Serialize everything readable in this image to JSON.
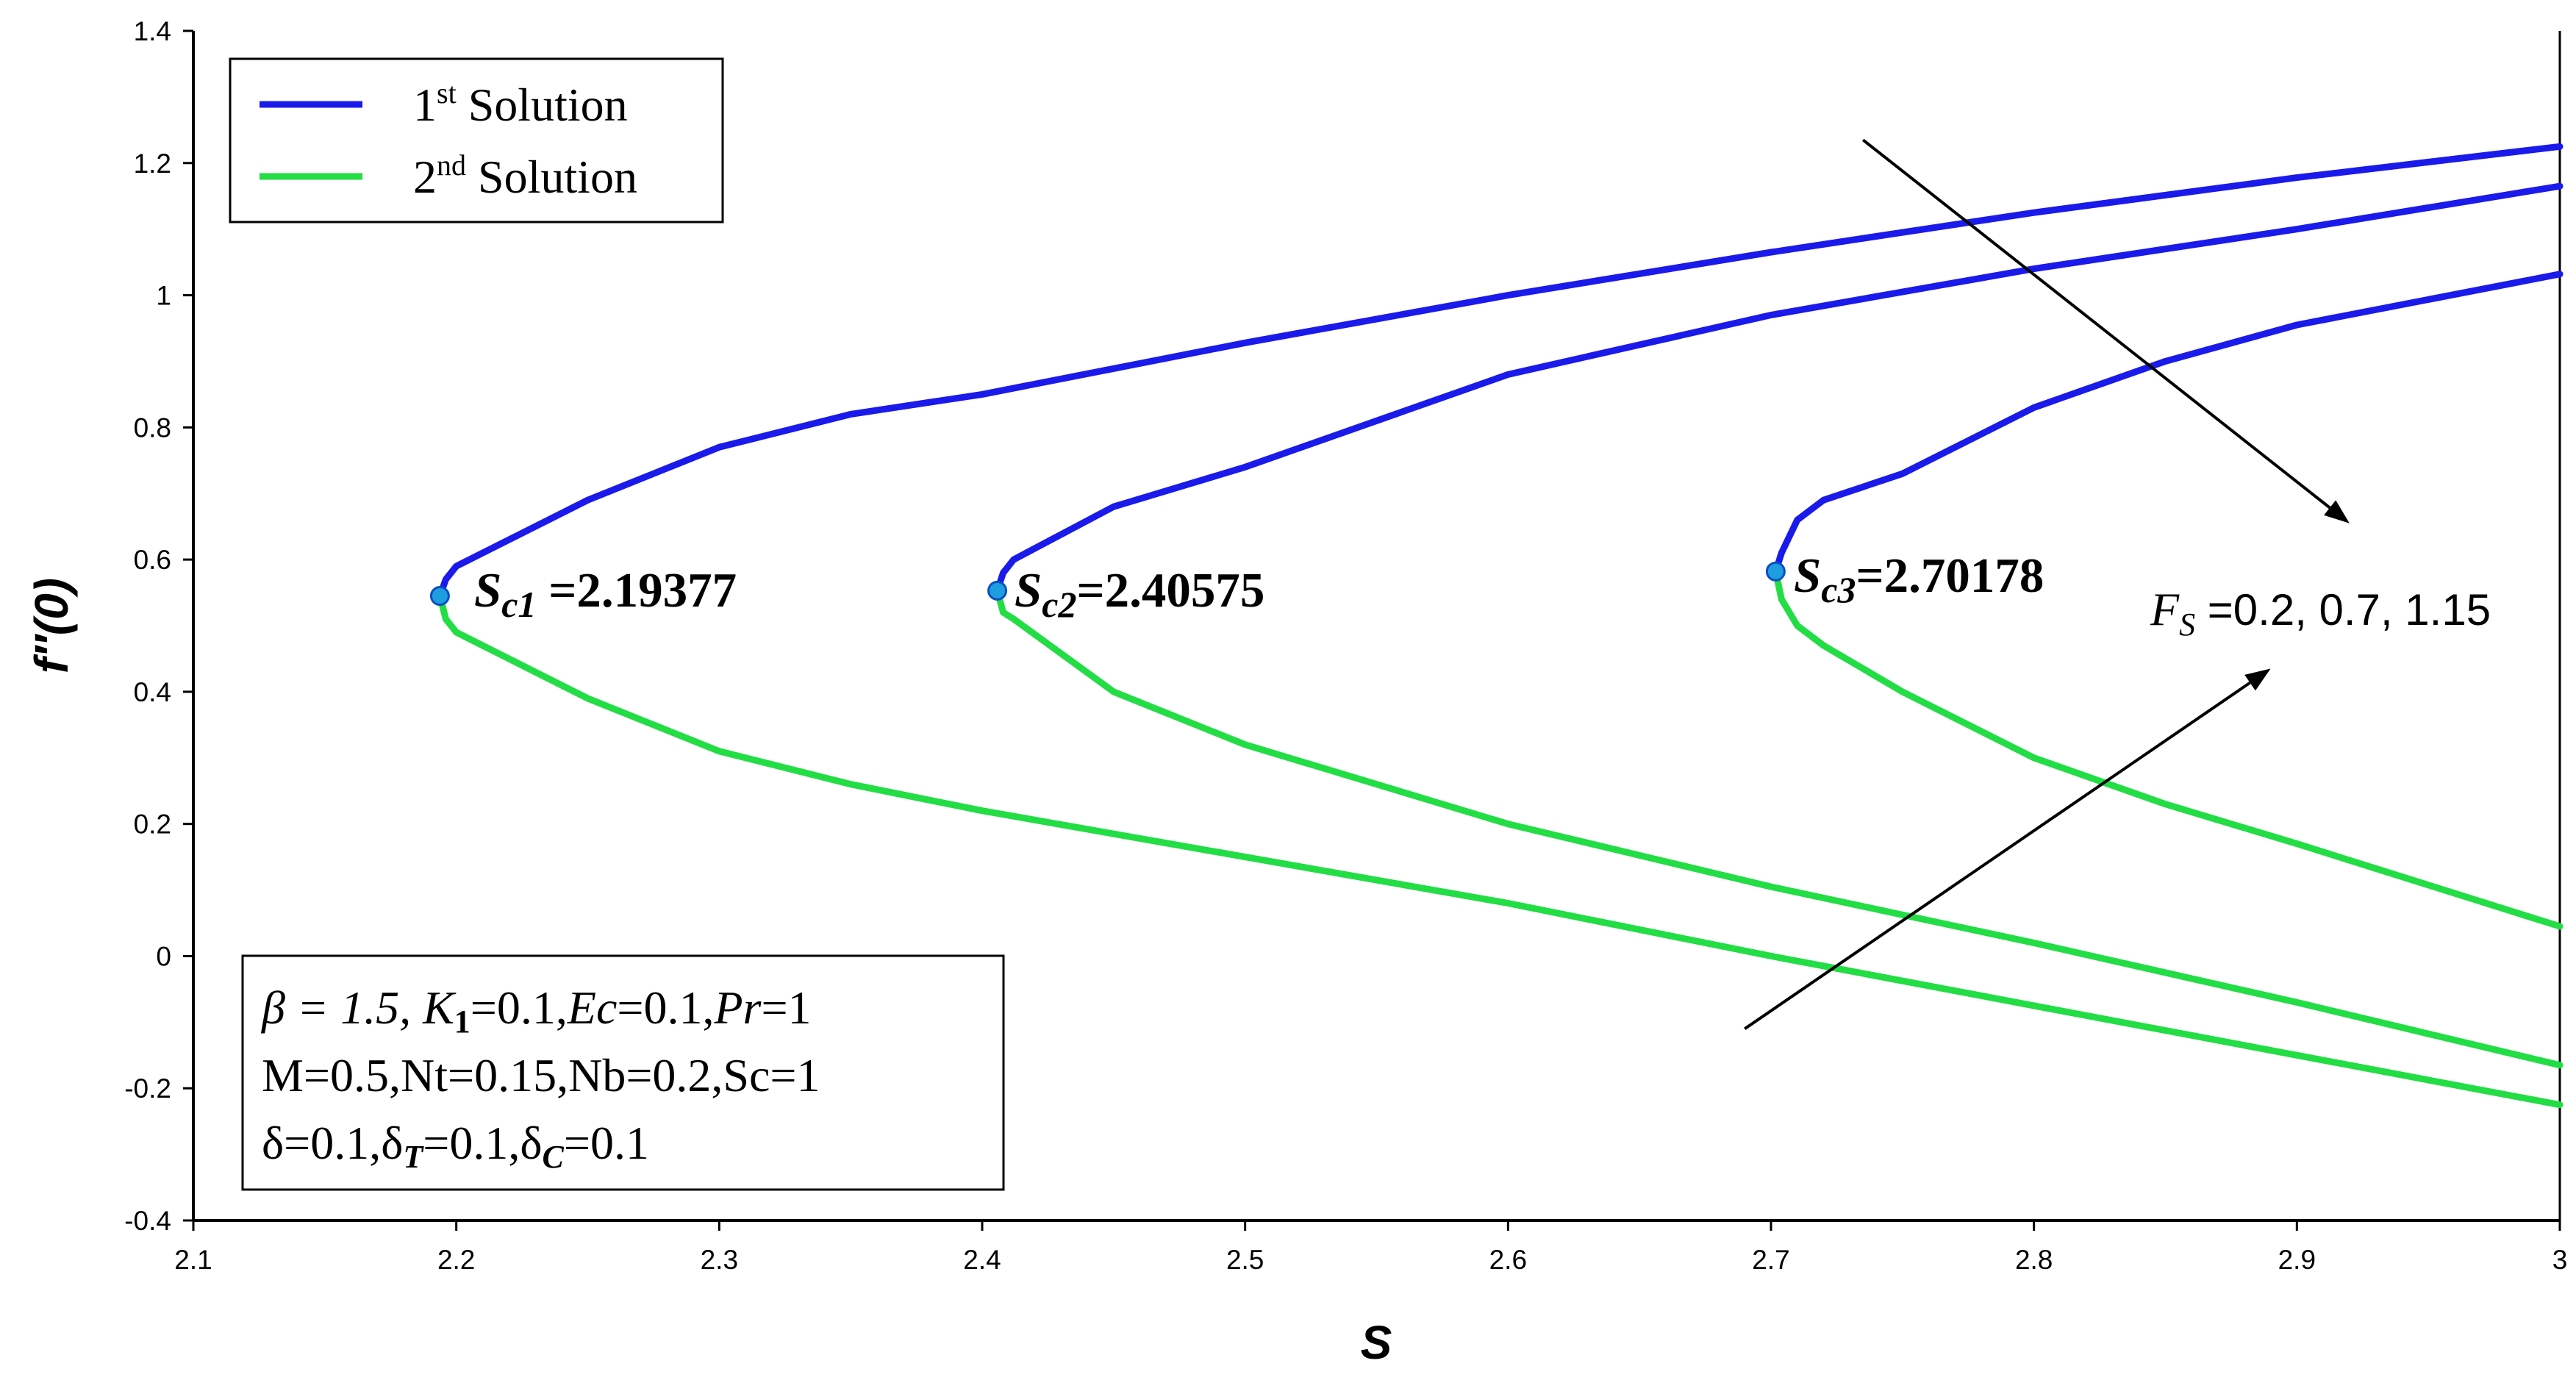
{
  "chart_data": {
    "type": "line",
    "xlabel": "S",
    "ylabel": "f′′(0)",
    "xlim": [
      2.1,
      3.0
    ],
    "ylim": [
      -0.4,
      1.4
    ],
    "x_ticks": [
      "2.1",
      "2.2",
      "2.3",
      "2.4",
      "2.5",
      "2.6",
      "2.7",
      "2.8",
      "2.9",
      "3"
    ],
    "y_ticks": [
      "-0.4",
      "-0.2",
      "0",
      "0.2",
      "0.4",
      "0.6",
      "0.8",
      "1",
      "1.2",
      "1.4"
    ],
    "grid": false,
    "legend_position": "top-left",
    "legend": [
      {
        "base": "1",
        "sup": "st",
        "rest": " Solution",
        "color": "#1a1aeb"
      },
      {
        "base": "2",
        "sup": "nd",
        "rest": " Solution",
        "color": "#22dd44"
      }
    ],
    "series": [
      {
        "name": "1st Solution",
        "Fs": "0.2",
        "color": "#1a1aeb",
        "points": [
          [
            2.19377,
            0.545
          ],
          [
            2.196,
            0.57
          ],
          [
            2.2,
            0.59
          ],
          [
            2.25,
            0.69
          ],
          [
            2.3,
            0.77
          ],
          [
            2.35,
            0.82
          ],
          [
            2.4,
            0.85
          ],
          [
            2.5,
            0.928
          ],
          [
            2.6,
            1.0
          ],
          [
            2.7,
            1.065
          ],
          [
            2.8,
            1.125
          ],
          [
            2.9,
            1.178
          ],
          [
            3.0,
            1.225
          ]
        ]
      },
      {
        "name": "2nd Solution",
        "Fs": "0.2",
        "color": "#22dd44",
        "points": [
          [
            2.19377,
            0.545
          ],
          [
            2.196,
            0.51
          ],
          [
            2.2,
            0.49
          ],
          [
            2.25,
            0.39
          ],
          [
            2.3,
            0.31
          ],
          [
            2.35,
            0.26
          ],
          [
            2.4,
            0.22
          ],
          [
            2.5,
            0.15
          ],
          [
            2.6,
            0.08
          ],
          [
            2.7,
            0.0
          ],
          [
            2.8,
            -0.075
          ],
          [
            2.9,
            -0.15
          ],
          [
            3.0,
            -0.225
          ]
        ]
      },
      {
        "name": "1st Solution",
        "Fs": "0.7",
        "color": "#1a1aeb",
        "points": [
          [
            2.40575,
            0.553
          ],
          [
            2.408,
            0.58
          ],
          [
            2.412,
            0.6
          ],
          [
            2.45,
            0.68
          ],
          [
            2.5,
            0.74
          ],
          [
            2.6,
            0.88
          ],
          [
            2.7,
            0.97
          ],
          [
            2.8,
            1.04
          ],
          [
            2.9,
            1.1
          ],
          [
            3.0,
            1.165
          ]
        ]
      },
      {
        "name": "2nd Solution",
        "Fs": "0.7",
        "color": "#22dd44",
        "points": [
          [
            2.40575,
            0.553
          ],
          [
            2.408,
            0.52
          ],
          [
            2.412,
            0.51
          ],
          [
            2.45,
            0.4
          ],
          [
            2.5,
            0.32
          ],
          [
            2.6,
            0.2
          ],
          [
            2.7,
            0.105
          ],
          [
            2.8,
            0.02
          ],
          [
            2.9,
            -0.07
          ],
          [
            3.0,
            -0.165
          ]
        ]
      },
      {
        "name": "1st Solution",
        "Fs": "1.15",
        "color": "#1a1aeb",
        "points": [
          [
            2.70178,
            0.582
          ],
          [
            2.704,
            0.61
          ],
          [
            2.71,
            0.66
          ],
          [
            2.72,
            0.69
          ],
          [
            2.75,
            0.73
          ],
          [
            2.8,
            0.83
          ],
          [
            2.85,
            0.9
          ],
          [
            2.9,
            0.955
          ],
          [
            3.0,
            1.032
          ]
        ]
      },
      {
        "name": "2nd Solution",
        "Fs": "1.15",
        "color": "#22dd44",
        "points": [
          [
            2.70178,
            0.582
          ],
          [
            2.704,
            0.54
          ],
          [
            2.71,
            0.5
          ],
          [
            2.72,
            0.47
          ],
          [
            2.75,
            0.4
          ],
          [
            2.8,
            0.3
          ],
          [
            2.85,
            0.23
          ],
          [
            2.9,
            0.17
          ],
          [
            3.0,
            0.045
          ]
        ]
      }
    ],
    "critical_points": [
      {
        "x": 2.19377,
        "y": 0.545,
        "sub": "c1",
        "value": " =2.19377"
      },
      {
        "x": 2.40575,
        "y": 0.553,
        "sub": "c2",
        "value": "=2.40575"
      },
      {
        "x": 2.70178,
        "y": 0.582,
        "sub": "c3",
        "value": "=2.70178"
      }
    ],
    "annotations": {
      "fs_sub": "S",
      "fs_values": " =0.2, 0.7, 1.15",
      "arrows": [
        {
          "from": [
            2.735,
            1.235
          ],
          "to": [
            2.92,
            0.655
          ]
        },
        {
          "from": [
            2.69,
            -0.11
          ],
          "to": [
            2.89,
            0.435
          ]
        }
      ]
    },
    "params": {
      "line1": {
        "beta": "β = 1.5, ",
        "k1_tail": "=0.1,",
        "ec_tail": "=0.1,",
        "pr_tail": "=1"
      },
      "line2": "M=0.5,Nt=0.15,Nb=0.2,Sc=1",
      "line3": {
        "a": "δ=0.1,δ",
        "t_tail": "=0.1,δ",
        "c_tail": "=0.1"
      }
    }
  }
}
